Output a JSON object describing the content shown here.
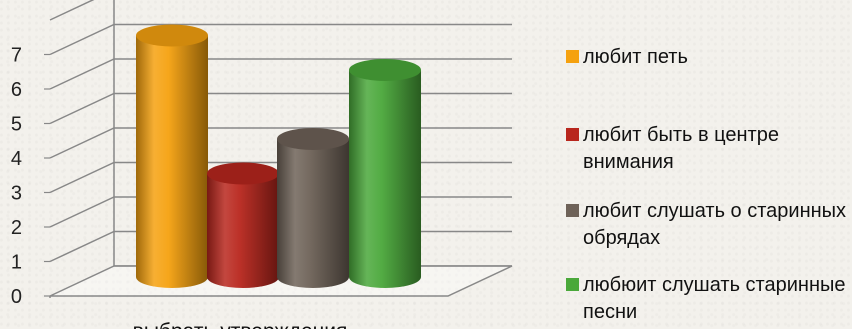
{
  "chart_data": {
    "type": "bar",
    "style": "3d-cylinder",
    "categories": [
      "выбрать утверждения"
    ],
    "series": [
      {
        "name": "любит петь",
        "values": [
          7
        ],
        "color": "#f5a10f"
      },
      {
        "name": "любит быть в центре внимания",
        "values": [
          3
        ],
        "color": "#b8261d"
      },
      {
        "name": "любит слушать о старинных обрядах",
        "values": [
          4
        ],
        "color": "#6e6258"
      },
      {
        "name": "любюит слушать старинные песни",
        "values": [
          6
        ],
        "color": "#4aa83a"
      }
    ],
    "title": "",
    "xlabel": "",
    "ylabel": "",
    "ylim": [
      0,
      7
    ],
    "yticks": [
      "0",
      "1",
      "2",
      "3",
      "4",
      "5",
      "6",
      "7"
    ],
    "grid": true,
    "legend_position": "right"
  }
}
